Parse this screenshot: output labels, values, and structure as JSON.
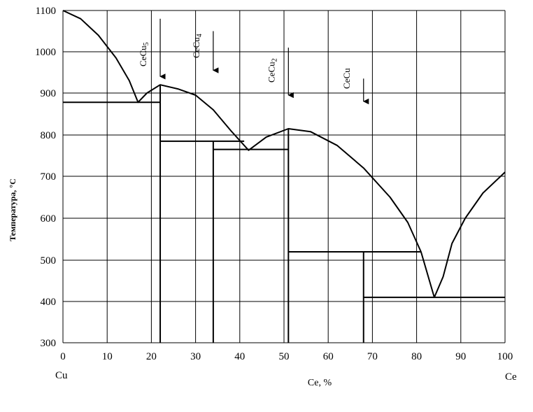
{
  "chart_data": {
    "type": "line",
    "title": "",
    "xlabel": "Ce, %",
    "ylabel": "Температура, °C",
    "xlim": [
      0,
      100
    ],
    "ylim": [
      300,
      1100
    ],
    "x_ticks": [
      "0",
      "10",
      "20",
      "30",
      "40",
      "50",
      "60",
      "70",
      "80",
      "90",
      "100"
    ],
    "y_ticks": [
      "1100",
      "1000",
      "900",
      "800",
      "700",
      "600",
      "500",
      "400",
      "300"
    ],
    "end_labels": {
      "left": "Cu",
      "right": "Ce"
    },
    "grid": true,
    "series": [
      {
        "values": [
          [
            0,
            1100
          ],
          [
            4,
            1080
          ],
          [
            8,
            1040
          ],
          [
            12,
            985
          ],
          [
            15,
            930
          ],
          [
            17,
            878
          ],
          [
            19,
            900
          ],
          [
            22,
            920
          ],
          [
            26,
            910
          ],
          [
            30,
            895
          ],
          [
            34,
            860
          ],
          [
            38,
            810
          ],
          [
            42,
            763
          ],
          [
            46,
            795
          ],
          [
            51,
            815
          ],
          [
            56,
            808
          ],
          [
            62,
            775
          ],
          [
            68,
            720
          ],
          [
            74,
            650
          ],
          [
            78,
            590
          ],
          [
            81,
            520
          ],
          [
            84,
            410
          ],
          [
            86,
            460
          ],
          [
            88,
            540
          ],
          [
            91,
            600
          ],
          [
            95,
            660
          ],
          [
            100,
            710
          ]
        ]
      }
    ],
    "phase_lines": {
      "horizontal": [
        {
          "y": 878,
          "x0": 0,
          "x1": 22
        },
        {
          "y": 785,
          "x0": 22,
          "x1": 41
        },
        {
          "y": 765,
          "x0": 34,
          "x1": 51
        },
        {
          "y": 520,
          "x0": 51,
          "x1": 81
        },
        {
          "y": 410,
          "x0": 68,
          "x1": 100
        }
      ],
      "vertical": [
        {
          "x": 22,
          "y0": 300,
          "y1": 920
        },
        {
          "x": 34,
          "y0": 300,
          "y1": 785
        },
        {
          "x": 51,
          "y0": 300,
          "y1": 815
        },
        {
          "x": 68,
          "y0": 300,
          "y1": 520
        }
      ]
    },
    "compounds": [
      {
        "label_main": "CeCu",
        "label_sub": "5",
        "x": 22,
        "arrow_from": 1080,
        "arrow_to": 940
      },
      {
        "label_main": "CeCu",
        "label_sub": "4",
        "x": 34,
        "arrow_from": 1050,
        "arrow_to": 955
      },
      {
        "label_main": "CeCu",
        "label_sub": "2",
        "x": 51,
        "arrow_from": 1010,
        "arrow_to": 895
      },
      {
        "label_main": "CeCu",
        "label_sub": "",
        "x": 68,
        "arrow_from": 935,
        "arrow_to": 880
      }
    ]
  }
}
